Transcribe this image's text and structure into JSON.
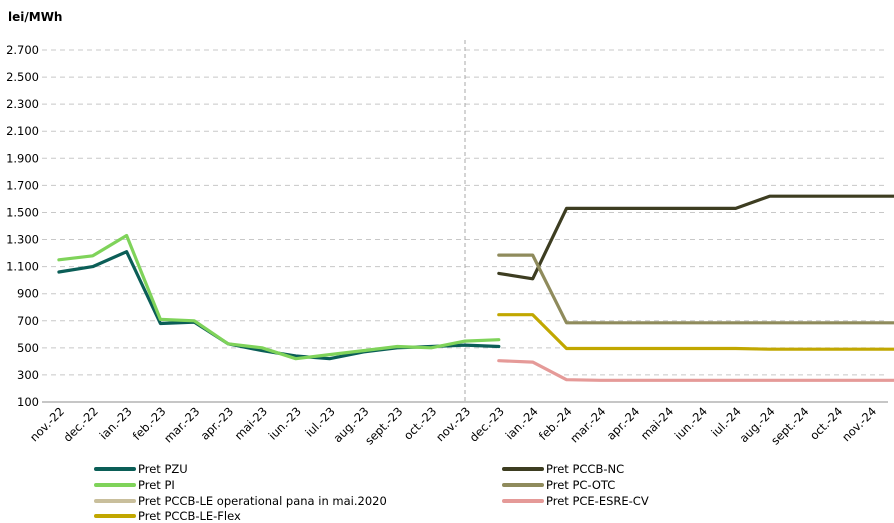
{
  "unit_label": "lei/MWh",
  "chart_data": {
    "type": "line",
    "ylabel": "lei/MWh",
    "ylim": [
      100,
      2700
    ],
    "yticks": [
      "100",
      "300",
      "500",
      "700",
      "900",
      "1.100",
      "1.300",
      "1.500",
      "1.700",
      "1.900",
      "2.100",
      "2.300",
      "2.500",
      "2.700"
    ],
    "categories": [
      "nov.-22",
      "dec.-22",
      "ian.-23",
      "feb.-23",
      "mar.-23",
      "apr.-23",
      "mai-23",
      "iun.-23",
      "iul.-23",
      "aug.-23",
      "sept.-23",
      "oct.-23",
      "nov.-23",
      "dec.-23",
      "ian.-24",
      "feb.-24",
      "mar.-24",
      "apr.-24",
      "mai-24",
      "iun.-24",
      "iul.-24",
      "aug.-24",
      "sept.-24",
      "oct.-24",
      "nov.-24"
    ],
    "grid": true,
    "divider_after_category": "nov.-23",
    "series": [
      {
        "name": "Pret PZU",
        "color": "#0b5e57",
        "points": [
          [
            0,
            1060
          ],
          [
            0.5,
            1100
          ],
          [
            1,
            1210
          ],
          [
            1.5,
            680
          ],
          [
            2,
            690
          ],
          [
            2.5,
            530
          ],
          [
            3,
            480
          ],
          [
            3.5,
            440
          ],
          [
            4,
            420
          ],
          [
            4.5,
            470
          ],
          [
            5,
            500
          ],
          [
            5.5,
            510
          ],
          [
            6,
            520
          ],
          [
            6.5,
            510
          ]
        ]
      },
      {
        "name": "Pret PI",
        "color": "#7fd35a",
        "points": [
          [
            0,
            1150
          ],
          [
            0.5,
            1180
          ],
          [
            1,
            1330
          ],
          [
            1.5,
            710
          ],
          [
            2,
            700
          ],
          [
            2.5,
            530
          ],
          [
            3,
            500
          ],
          [
            3.5,
            420
          ],
          [
            4,
            450
          ],
          [
            4.5,
            480
          ],
          [
            5,
            510
          ],
          [
            5.5,
            500
          ],
          [
            6,
            550
          ],
          [
            6.5,
            560
          ]
        ]
      },
      {
        "name": "Pret PCCB-LE operational pana in mai.2020",
        "color": "#c9bf9c",
        "points": []
      },
      {
        "name": "Pret PCCB-LE-Flex",
        "color": "#c1a700",
        "points": [
          [
            6.5,
            745
          ],
          [
            7,
            745
          ],
          [
            7.5,
            495
          ],
          [
            8,
            495
          ],
          [
            9,
            495
          ],
          [
            10,
            495
          ],
          [
            10.5,
            490
          ],
          [
            11,
            490
          ],
          [
            12,
            490
          ],
          [
            12.5,
            490
          ]
        ]
      },
      {
        "name": "Pret PCCB-NC",
        "color": "#3d3d21",
        "points": [
          [
            6.5,
            1050
          ],
          [
            7,
            1010
          ],
          [
            7.5,
            1530
          ],
          [
            8,
            1530
          ],
          [
            9,
            1530
          ],
          [
            10,
            1530
          ],
          [
            10.5,
            1620
          ],
          [
            11,
            1620
          ],
          [
            12,
            1620
          ],
          [
            12.5,
            1620
          ]
        ]
      },
      {
        "name": "Pret PC-OTC",
        "color": "#8f8b5c",
        "points": [
          [
            6.5,
            1185
          ],
          [
            7,
            1185
          ],
          [
            7.5,
            685
          ],
          [
            8,
            685
          ],
          [
            9,
            685
          ],
          [
            10,
            685
          ],
          [
            11,
            685
          ],
          [
            12,
            685
          ],
          [
            12.5,
            685
          ]
        ]
      },
      {
        "name": "Pret PCE-ESRE-CV",
        "color": "#e59a98",
        "points": [
          [
            6.5,
            405
          ],
          [
            7,
            395
          ],
          [
            7.5,
            265
          ],
          [
            8,
            260
          ],
          [
            9,
            260
          ],
          [
            10,
            260
          ],
          [
            11,
            260
          ],
          [
            12,
            260
          ],
          [
            12.5,
            260
          ]
        ]
      }
    ]
  }
}
